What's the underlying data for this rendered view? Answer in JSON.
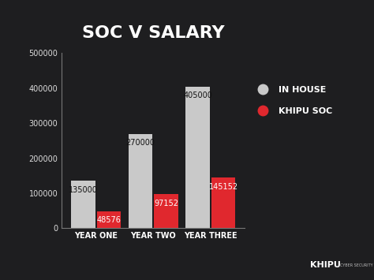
{
  "chart_data": {
    "type": "bar",
    "title": "SOC V SALARY",
    "categories": [
      "YEAR ONE",
      "YEAR TWO",
      "YEAR THREE"
    ],
    "series": [
      {
        "name": "IN HOUSE",
        "color": "#c9c9c9",
        "values": [
          135000,
          270000,
          405000
        ]
      },
      {
        "name": "KHIPU SOC",
        "color": "#e0282e",
        "values": [
          48576,
          97152,
          145152
        ]
      }
    ],
    "ylim": [
      0,
      500000
    ],
    "yticks": [
      0,
      100000,
      200000,
      300000,
      400000,
      500000
    ],
    "grid": false,
    "legend": "upper right",
    "data_labels": true
  },
  "footer": {
    "logo": "KHIPU",
    "tagline": "CYBER SECURITY"
  }
}
